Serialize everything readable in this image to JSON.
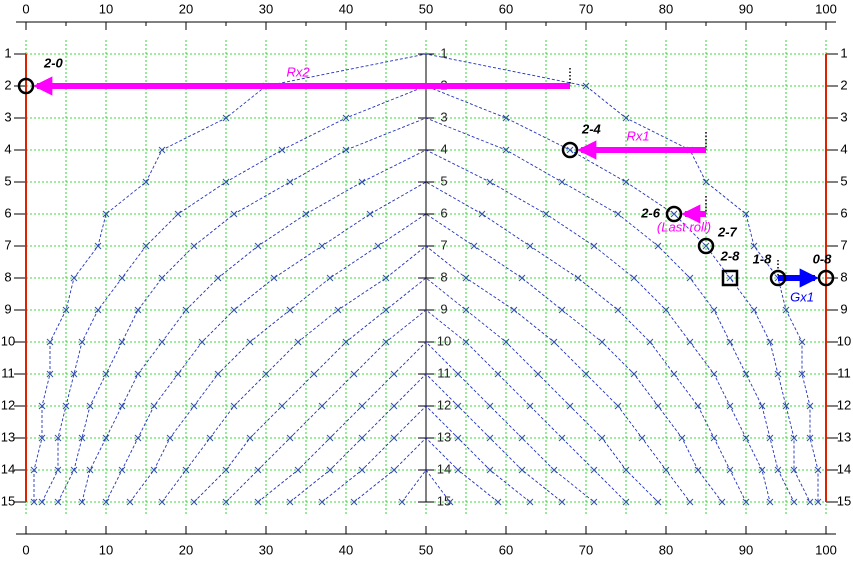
{
  "chart_data": {
    "type": "scatter",
    "xlim": [
      0,
      100
    ],
    "ylim": [
      16,
      0
    ],
    "y_inverted": true,
    "xticks": [
      0,
      10,
      20,
      30,
      40,
      50,
      60,
      70,
      80,
      90,
      100
    ],
    "xminorticks": [
      5,
      15,
      25,
      35,
      45,
      55,
      65,
      75,
      85,
      95
    ],
    "yticks": [
      1,
      2,
      3,
      4,
      5,
      6,
      7,
      8,
      9,
      10,
      11,
      12,
      13,
      14,
      15
    ],
    "grid": true,
    "grid_color": "#00cc00",
    "center_axis": 50,
    "boundaries": [
      0,
      100
    ],
    "boundary_color": "#dd2200",
    "curve_color": "#2233bb",
    "series": [
      {
        "x": [
          1,
          1,
          2,
          2,
          3,
          3,
          5,
          6,
          9,
          10,
          15,
          17,
          25,
          30,
          50,
          70,
          75,
          83,
          85,
          90,
          91,
          94,
          95,
          97,
          97,
          98,
          98,
          99,
          99
        ],
        "values": [
          15,
          14,
          13,
          12,
          11,
          10,
          9,
          8,
          7,
          6,
          5,
          4,
          3,
          2,
          1,
          2,
          3,
          4,
          5,
          6,
          7,
          8,
          9,
          10,
          11,
          12,
          13,
          14,
          15
        ]
      },
      {
        "x": [
          2,
          4,
          4,
          5,
          6,
          7,
          9,
          12,
          15,
          19,
          25,
          32,
          40,
          50,
          60,
          68,
          75,
          81,
          85,
          88,
          91,
          93,
          94,
          95,
          96,
          96,
          98
        ],
        "values": [
          15,
          14,
          13,
          12,
          11,
          10,
          9,
          8,
          7,
          6,
          5,
          4,
          3,
          2,
          3,
          4,
          5,
          6,
          7,
          8,
          9,
          10,
          11,
          12,
          13,
          14,
          15
        ]
      },
      {
        "x": [
          4,
          6,
          7,
          8,
          10,
          12,
          14,
          17,
          21,
          26,
          33,
          40,
          50,
          60,
          67,
          74,
          79,
          83,
          86,
          88,
          90,
          92,
          93,
          94,
          96
        ],
        "values": [
          15,
          14,
          13,
          12,
          11,
          10,
          9,
          8,
          7,
          6,
          5,
          4,
          3,
          4,
          5,
          6,
          7,
          8,
          9,
          10,
          11,
          12,
          13,
          14,
          15
        ]
      },
      {
        "x": [
          7,
          8,
          10,
          12,
          14,
          17,
          20,
          24,
          29,
          35,
          42,
          50,
          58,
          65,
          71,
          76,
          80,
          83,
          86,
          88,
          90,
          92,
          93
        ],
        "values": [
          15,
          14,
          13,
          12,
          11,
          10,
          9,
          8,
          7,
          6,
          5,
          4,
          5,
          6,
          7,
          8,
          9,
          10,
          11,
          12,
          13,
          14,
          15
        ]
      },
      {
        "x": [
          10,
          12,
          14,
          16,
          19,
          22,
          26,
          31,
          37,
          43,
          50,
          57,
          63,
          69,
          74,
          78,
          81,
          84,
          86,
          88,
          90
        ],
        "values": [
          15,
          14,
          13,
          12,
          11,
          10,
          9,
          8,
          7,
          6,
          5,
          6,
          7,
          8,
          9,
          10,
          11,
          12,
          13,
          14,
          15
        ]
      },
      {
        "x": [
          13,
          16,
          18,
          21,
          24,
          28,
          33,
          38,
          44,
          50,
          56,
          62,
          67,
          72,
          76,
          79,
          82,
          84,
          87
        ],
        "values": [
          15,
          14,
          13,
          12,
          11,
          10,
          9,
          8,
          7,
          6,
          7,
          8,
          9,
          10,
          11,
          12,
          13,
          14,
          15
        ]
      },
      {
        "x": [
          17,
          20,
          23,
          26,
          30,
          34,
          39,
          45,
          50,
          55,
          61,
          66,
          70,
          74,
          77,
          80,
          83
        ],
        "values": [
          15,
          14,
          13,
          12,
          11,
          10,
          9,
          8,
          7,
          8,
          9,
          10,
          11,
          12,
          13,
          14,
          15
        ]
      },
      {
        "x": [
          21,
          25,
          28,
          32,
          36,
          40,
          45,
          50,
          55,
          60,
          64,
          68,
          72,
          75,
          79
        ],
        "values": [
          15,
          14,
          13,
          12,
          11,
          10,
          9,
          8,
          9,
          10,
          11,
          12,
          13,
          14,
          15
        ]
      },
      {
        "x": [
          25,
          29,
          33,
          37,
          41,
          45,
          50,
          55,
          59,
          63,
          67,
          71,
          75
        ],
        "values": [
          15,
          14,
          13,
          12,
          11,
          10,
          9,
          10,
          11,
          12,
          13,
          14,
          15
        ]
      },
      {
        "x": [
          29,
          34,
          38,
          42,
          46,
          50,
          54,
          58,
          62,
          66,
          71
        ],
        "values": [
          15,
          14,
          13,
          12,
          11,
          10,
          11,
          12,
          13,
          14,
          15
        ]
      },
      {
        "x": [
          33,
          38,
          42,
          46,
          50,
          54,
          58,
          62,
          67
        ],
        "values": [
          15,
          14,
          13,
          12,
          11,
          12,
          13,
          14,
          15
        ]
      },
      {
        "x": [
          37,
          42,
          46,
          50,
          54,
          58,
          63
        ],
        "values": [
          15,
          14,
          13,
          12,
          13,
          14,
          15
        ]
      },
      {
        "x": [
          41,
          46,
          50,
          54,
          59
        ],
        "values": [
          15,
          14,
          13,
          14,
          15
        ]
      },
      {
        "x": [
          47,
          50,
          53
        ],
        "values": [
          15,
          14,
          15
        ]
      }
    ],
    "points": [
      {
        "label": "2-0",
        "x": 0,
        "y": 2,
        "marker": "circle"
      },
      {
        "label": "2-4",
        "x": 68,
        "y": 4,
        "marker": "circle"
      },
      {
        "label": "2-6",
        "x": 81,
        "y": 6,
        "marker": "circle"
      },
      {
        "label": "2-7",
        "x": 85,
        "y": 7,
        "marker": "circle"
      },
      {
        "label": "2-8",
        "x": 88,
        "y": 8,
        "marker": "square"
      },
      {
        "label": "1-8",
        "x": 94,
        "y": 8,
        "marker": "circle"
      },
      {
        "label": "0-8",
        "x": 100,
        "y": 8,
        "marker": "circle"
      }
    ],
    "arrows": [
      {
        "label": "Rx2",
        "from": 68,
        "to": 0,
        "y": 2,
        "color": "#ff00ff"
      },
      {
        "label": "Rx1",
        "from": 85,
        "to": 68,
        "y": 4,
        "color": "#ff00ff"
      },
      {
        "label": "(Last roll)",
        "from": 85,
        "to": 81,
        "y": 6,
        "color": "#ff00ff"
      },
      {
        "label": "Gx1",
        "from": 94,
        "to": 100,
        "y": 8,
        "color": "#0000ff"
      }
    ]
  }
}
